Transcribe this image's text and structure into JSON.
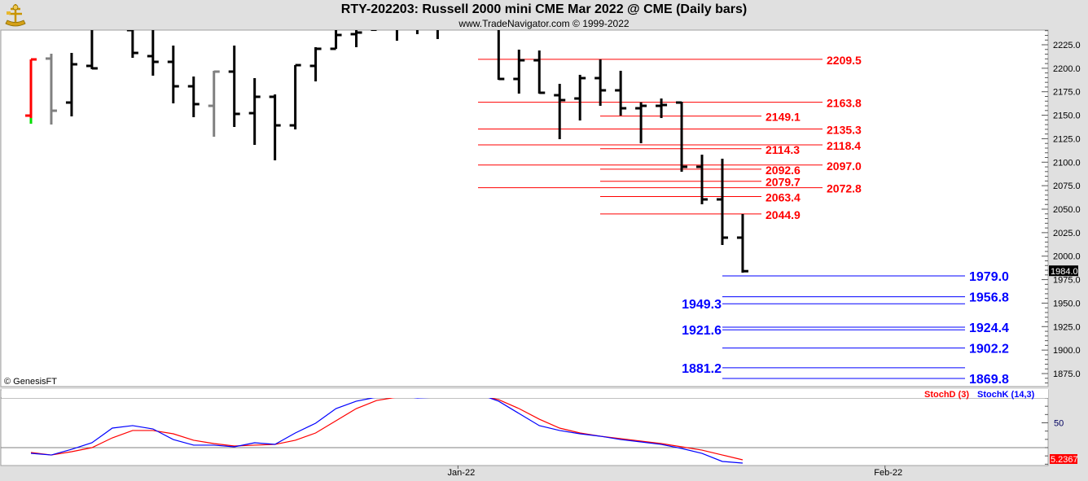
{
  "header": {
    "title": "RTY-202203:  Russell 2000 mini CME Mar 2022 @ CME  (Daily bars)",
    "subtitle": "www.TradeNavigator.com © 1999-2022",
    "logo_icon": "sextant-icon"
  },
  "copyright": "© GenesisFT",
  "colors": {
    "bar": "#000000",
    "resistance": "#ff0000",
    "support": "#0000ff",
    "stoch_d": "#ff0000",
    "stoch_k": "#0000ff",
    "background": "#ffffff",
    "frame": "#e0e0e0"
  },
  "chart_data": [
    {
      "type": "ohlc",
      "title": "RTY-202203:  Russell 2000 mini CME Mar 2022 @ CME  (Daily bars)",
      "ylim": [
        1861.2,
        2240.6
      ],
      "y_ticks": [
        "1875.0",
        "1900.0",
        "1925.0",
        "1950.0",
        "1975.0",
        "2000.0",
        "2025.0",
        "2050.0",
        "2075.0",
        "2100.0",
        "2125.0",
        "2150.0",
        "2175.0",
        "2200.0",
        "2225.0"
      ],
      "x_ticks": [
        {
          "label": "Jan-22",
          "bar": 21
        },
        {
          "label": "Feb-22",
          "bar": 42
        }
      ],
      "last_price": "1984.0",
      "bars": [
        {
          "o": 2149.6,
          "h": 2209.4,
          "l": 2141.0,
          "c": 2209.4,
          "color": "#ff0000"
        },
        {
          "o": 2210.3,
          "h": 2215.5,
          "l": 2140.1,
          "c": 2154.8,
          "color": "#808080"
        },
        {
          "o": 2163.5,
          "h": 2216.3,
          "l": 2148.8,
          "c": 2204.2
        },
        {
          "o": 2202.5,
          "h": 2245.0,
          "l": 2199.0,
          "c": 2199.9
        },
        null,
        {
          "o": 2240.6,
          "h": 2245.0,
          "l": 2211.1,
          "c": 2216.3
        },
        {
          "o": 2212.9,
          "h": 2245.0,
          "l": 2192.1,
          "c": 2206.8
        },
        {
          "o": 2206.8,
          "h": 2224.1,
          "l": 2162.6,
          "c": 2180.8
        },
        {
          "o": 2180.8,
          "h": 2191.2,
          "l": 2147.9,
          "c": 2161.8
        },
        {
          "o": 2160.0,
          "h": 2197.3,
          "l": 2127.1,
          "c": 2196.4,
          "color": "#808080"
        },
        {
          "o": 2196.4,
          "h": 2224.1,
          "l": 2137.5,
          "c": 2151.4
        },
        {
          "o": 2152.2,
          "h": 2189.5,
          "l": 2118.4,
          "c": 2169.6
        },
        {
          "o": 2169.6,
          "h": 2172.2,
          "l": 2102.0,
          "c": 2139.2
        },
        {
          "o": 2139.2,
          "h": 2203.3,
          "l": 2134.9,
          "c": 2203.3
        },
        {
          "o": 2202.5,
          "h": 2222.4,
          "l": 2186.0,
          "c": 2220.7
        },
        {
          "o": 2220.7,
          "h": 2245.0,
          "l": 2220.7,
          "c": 2235.4
        },
        {
          "o": 2236.3,
          "h": 2245.0,
          "l": 2222.4,
          "c": 2238.0
        },
        {
          "o": 2241.0,
          "h": 2245.0,
          "l": 2242.3,
          "c": 2242.3
        },
        {
          "o": 2245.0,
          "h": 2245.0,
          "l": 2229.3,
          "c": 2243.0
        },
        {
          "o": 2243.0,
          "h": 2245.0,
          "l": 2236.3,
          "c": 2243.0
        },
        {
          "o": 2243.0,
          "h": 2245.0,
          "l": 2231.1,
          "c": 2243.0
        },
        null,
        null,
        {
          "o": 2243.0,
          "h": 2245.0,
          "l": 2187.7,
          "c": 2188.6
        },
        {
          "o": 2188.6,
          "h": 2219.8,
          "l": 2173.0,
          "c": 2208.5
        },
        {
          "o": 2208.5,
          "h": 2218.9,
          "l": 2173.0,
          "c": 2173.9
        },
        {
          "o": 2171.3,
          "h": 2183.4,
          "l": 2124.5,
          "c": 2166.1
        },
        {
          "o": 2167.8,
          "h": 2193.0,
          "l": 2144.4,
          "c": 2189.5
        },
        {
          "o": 2189.5,
          "h": 2209.4,
          "l": 2160.0,
          "c": 2176.5
        },
        {
          "o": 2176.5,
          "h": 2197.3,
          "l": 2149.6,
          "c": 2157.4
        },
        {
          "o": 2157.4,
          "h": 2163.8,
          "l": 2120.2,
          "c": 2160.0
        },
        {
          "o": 2160.0,
          "h": 2167.8,
          "l": 2147.0,
          "c": 2160.9
        },
        {
          "o": 2163.5,
          "h": 2164.4,
          "l": 2089.9,
          "c": 2095.1
        },
        {
          "o": 2095.1,
          "h": 2108.0,
          "l": 2055.2,
          "c": 2060.4
        },
        {
          "o": 2060.4,
          "h": 2103.7,
          "l": 2011.9,
          "c": 2019.7
        },
        {
          "o": 2019.7,
          "h": 2044.8,
          "l": 1982.4,
          "c": 1984.0
        }
      ],
      "levels": [
        {
          "label": "2209.5",
          "value": 2209.5,
          "kind": "resistance",
          "group": "long"
        },
        {
          "label": "2163.8",
          "value": 2163.8,
          "kind": "resistance",
          "group": "long"
        },
        {
          "label": "2149.1",
          "value": 2149.1,
          "kind": "resistance",
          "group": "short"
        },
        {
          "label": "2135.3",
          "value": 2135.3,
          "kind": "resistance",
          "group": "long"
        },
        {
          "label": "2118.4",
          "value": 2118.4,
          "kind": "resistance",
          "group": "long"
        },
        {
          "label": "2114.3",
          "value": 2114.3,
          "kind": "resistance",
          "group": "short"
        },
        {
          "label": "2097.0",
          "value": 2097.0,
          "kind": "resistance",
          "group": "long"
        },
        {
          "label": "2092.6",
          "value": 2092.6,
          "kind": "resistance",
          "group": "short"
        },
        {
          "label": "2079.7",
          "value": 2079.7,
          "kind": "resistance",
          "group": "short"
        },
        {
          "label": "2072.8",
          "value": 2072.8,
          "kind": "resistance",
          "group": "long"
        },
        {
          "label": "2063.4",
          "value": 2063.4,
          "kind": "resistance",
          "group": "short"
        },
        {
          "label": "2044.9",
          "value": 2044.9,
          "kind": "resistance",
          "group": "short"
        },
        {
          "label": "1979.0",
          "value": 1979.0,
          "kind": "support",
          "group": "right"
        },
        {
          "label": "1956.8",
          "value": 1956.8,
          "kind": "support",
          "group": "right"
        },
        {
          "label": "1949.3",
          "value": 1949.3,
          "kind": "support",
          "group": "left"
        },
        {
          "label": "1924.4",
          "value": 1924.4,
          "kind": "support",
          "group": "right"
        },
        {
          "label": "1921.6",
          "value": 1921.6,
          "kind": "support",
          "group": "left"
        },
        {
          "label": "1902.2",
          "value": 1902.2,
          "kind": "support",
          "group": "right"
        },
        {
          "label": "1881.2",
          "value": 1881.2,
          "kind": "support",
          "group": "left"
        },
        {
          "label": "1869.8",
          "value": 1869.8,
          "kind": "support",
          "group": "right"
        }
      ]
    },
    {
      "type": "line",
      "ylim": [
        -2,
        91
      ],
      "y_ticks": [
        "50"
      ],
      "reference_lines": [
        20,
        80
      ],
      "last_value": "5.2367",
      "series": [
        {
          "name": "StochD (3)",
          "color": "#ff0000",
          "values": [
            14.1,
            11.1,
            15.1,
            20.0,
            31.8,
            40.7,
            40.7,
            36.7,
            28.9,
            24.9,
            22.0,
            23.0,
            23.9,
            28.9,
            37.7,
            52.5,
            67.2,
            77.0,
            81.0,
            81.0,
            81.0,
            83.0,
            83.0,
            78.0,
            67.2,
            54.4,
            43.6,
            37.7,
            33.8,
            30.8,
            27.9,
            24.9,
            21.0,
            17.0,
            11.1,
            5.24
          ]
        },
        {
          "name": "StochK (14,3)",
          "color": "#0000ff",
          "values": [
            13.1,
            11.1,
            18.0,
            25.9,
            43.6,
            46.6,
            42.6,
            29.8,
            23.0,
            23.0,
            21.0,
            25.9,
            23.9,
            37.7,
            49.5,
            67.2,
            76.1,
            81.0,
            83.0,
            80.0,
            81.0,
            83.0,
            84.9,
            76.1,
            61.3,
            46.6,
            40.7,
            36.7,
            33.8,
            29.8,
            26.9,
            23.9,
            19.0,
            13.1,
            3.3,
            1.3
          ]
        }
      ]
    }
  ]
}
